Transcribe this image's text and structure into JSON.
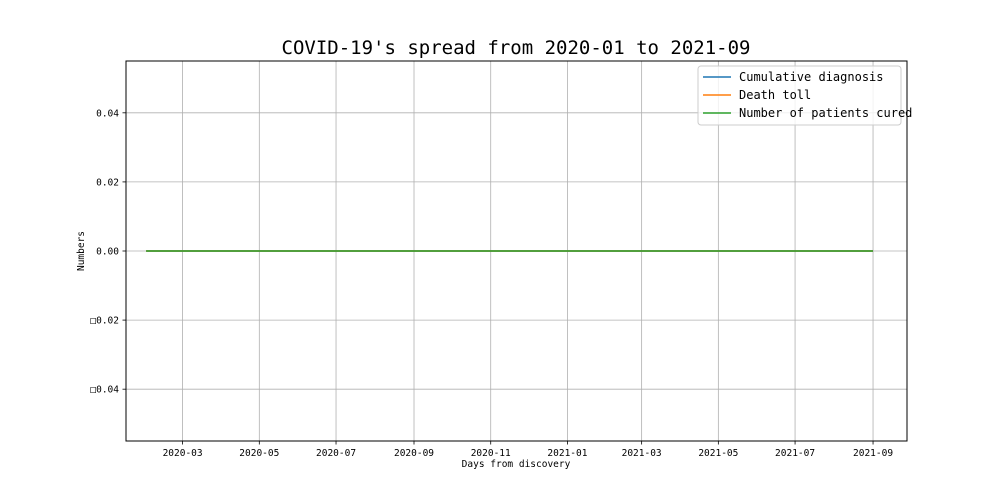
{
  "chart_data": {
    "type": "line",
    "title": "COVID-19's spread from 2020-01 to 2021-09",
    "xlabel": "Days from discovery",
    "ylabel": "Numbers",
    "x_range": [
      "2020-02-01",
      "2021-09-01"
    ],
    "xlim": [
      "2020-01-16",
      "2021-09-28"
    ],
    "ylim": [
      -0.055,
      0.055
    ],
    "x_ticks": [
      "2020-03",
      "2020-05",
      "2020-07",
      "2020-09",
      "2020-11",
      "2021-01",
      "2021-03",
      "2021-05",
      "2021-07",
      "2021-09"
    ],
    "y_ticks": [
      {
        "value": 0.04,
        "label": "0.04"
      },
      {
        "value": 0.02,
        "label": "0.02"
      },
      {
        "value": 0.0,
        "label": "0.00"
      },
      {
        "value": -0.02,
        "label": "□0.02"
      },
      {
        "value": -0.04,
        "label": "□0.04"
      }
    ],
    "grid": true,
    "legend_position": "top-right",
    "series": [
      {
        "name": "Cumulative diagnosis",
        "color": "#1f77b4",
        "values": [
          0,
          0
        ]
      },
      {
        "name": "Death toll",
        "color": "#ff7f0e",
        "values": [
          0,
          0
        ]
      },
      {
        "name": "Number of patients cured",
        "color": "#2ca02c",
        "values": [
          0,
          0
        ]
      }
    ]
  }
}
